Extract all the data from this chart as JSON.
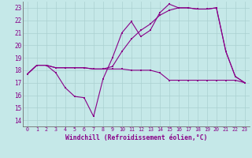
{
  "xlabel": "Windchill (Refroidissement éolien,°C)",
  "bg_color": "#c5e8e8",
  "grid_color": "#aad0d0",
  "line_color": "#880088",
  "xlim_min": -0.5,
  "xlim_max": 23.5,
  "ylim_min": 13.5,
  "ylim_max": 23.5,
  "xticks": [
    0,
    1,
    2,
    3,
    4,
    5,
    6,
    7,
    8,
    9,
    10,
    11,
    12,
    13,
    14,
    15,
    16,
    17,
    18,
    19,
    20,
    21,
    22,
    23
  ],
  "yticks": [
    14,
    15,
    16,
    17,
    18,
    19,
    20,
    21,
    22,
    23
  ],
  "series1_x": [
    0,
    1,
    2,
    3,
    4,
    5,
    6,
    7,
    8,
    9,
    10,
    11,
    12,
    13,
    14,
    15,
    16,
    17,
    18,
    19,
    20,
    21,
    22,
    23
  ],
  "series1_y": [
    17.7,
    18.4,
    18.4,
    17.8,
    16.6,
    15.9,
    15.8,
    14.3,
    17.3,
    19.0,
    21.0,
    21.9,
    20.7,
    21.2,
    22.6,
    23.3,
    23.0,
    23.0,
    22.9,
    22.9,
    23.0,
    19.5,
    17.5,
    17.0
  ],
  "series2_x": [
    0,
    1,
    2,
    3,
    4,
    5,
    6,
    7,
    8,
    9,
    10,
    11,
    12,
    13,
    14,
    15,
    16,
    17,
    18,
    19,
    20,
    21,
    22,
    23
  ],
  "series2_y": [
    17.7,
    18.4,
    18.4,
    18.2,
    18.2,
    18.2,
    18.2,
    18.1,
    18.1,
    18.3,
    19.5,
    20.5,
    21.2,
    21.7,
    22.4,
    22.8,
    23.0,
    23.0,
    22.9,
    22.9,
    23.0,
    19.5,
    17.5,
    17.0
  ],
  "series3_x": [
    0,
    1,
    2,
    3,
    4,
    5,
    6,
    7,
    8,
    9,
    10,
    11,
    12,
    13,
    14,
    15,
    16,
    17,
    18,
    19,
    20,
    21,
    22,
    23
  ],
  "series3_y": [
    17.7,
    18.4,
    18.4,
    18.2,
    18.2,
    18.2,
    18.2,
    18.1,
    18.1,
    18.1,
    18.1,
    18.0,
    18.0,
    18.0,
    17.8,
    17.2,
    17.2,
    17.2,
    17.2,
    17.2,
    17.2,
    17.2,
    17.2,
    17.0
  ]
}
